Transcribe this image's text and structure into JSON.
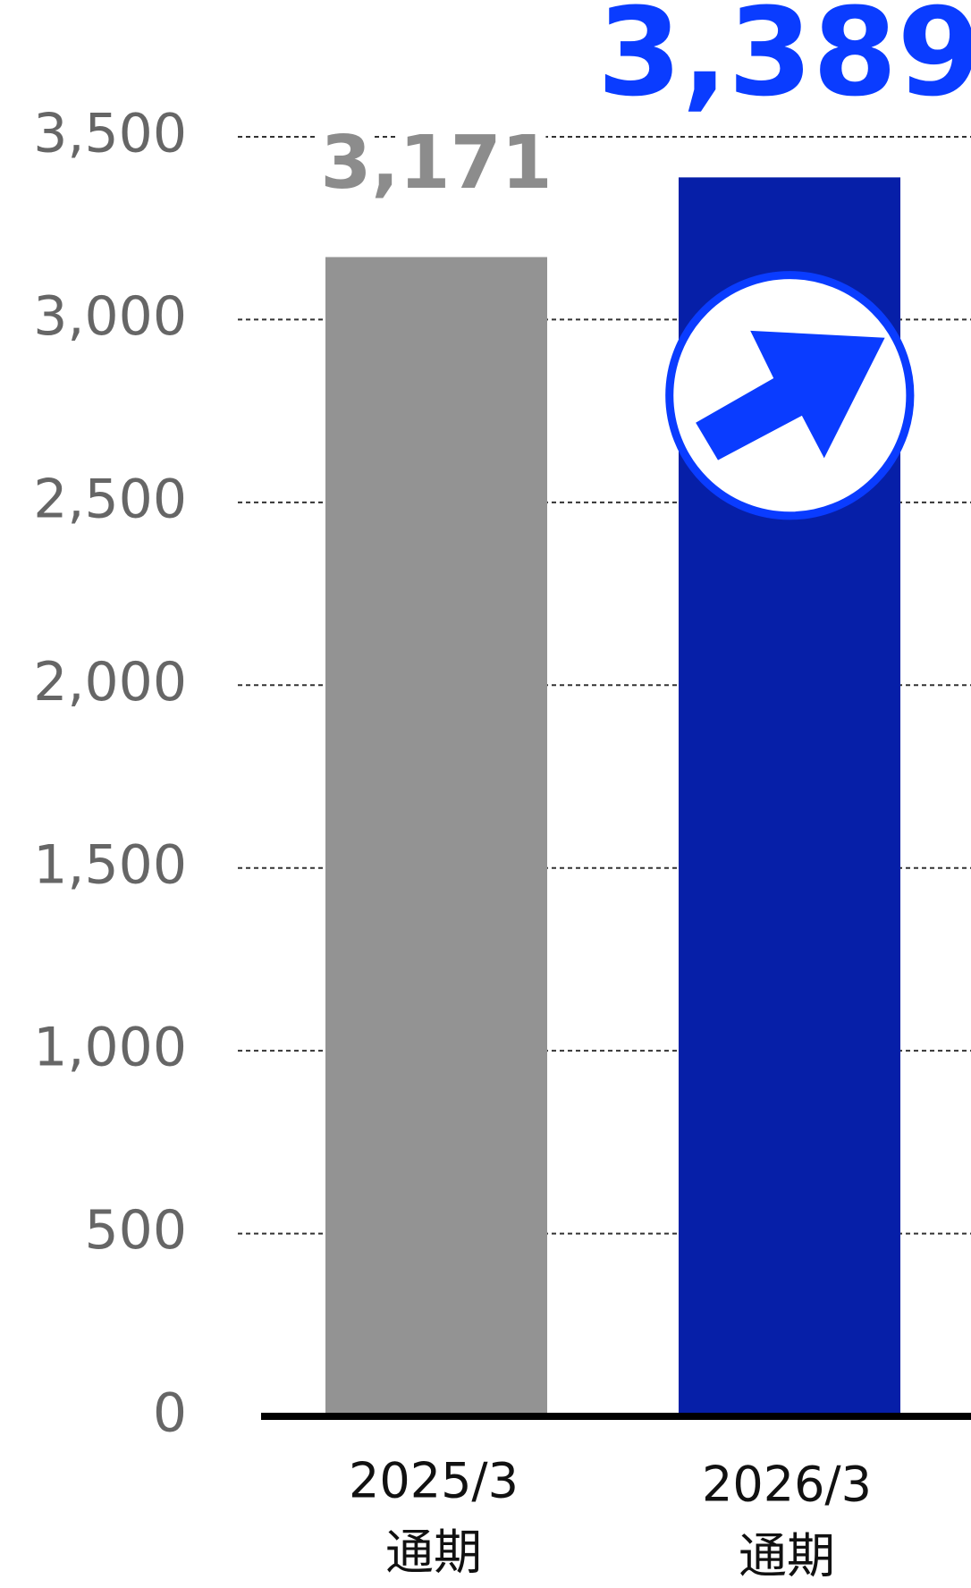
{
  "chart_data": {
    "type": "bar",
    "categories": [
      [
        "2025/3",
        "通期"
      ],
      [
        "2026/3",
        "通期"
      ]
    ],
    "values": [
      3171,
      3389
    ],
    "value_labels": [
      "3,171",
      "3,389"
    ],
    "colors": [
      "#939393",
      "#061fa8"
    ],
    "label_colors": [
      "#8c8c8c",
      "#0a3cff"
    ],
    "ylim": [
      0,
      3500
    ],
    "yticks": [
      0,
      500,
      {
        "value": 1000,
        "label": "1,000"
      },
      {
        "value": 1500,
        "label": "1,500"
      },
      {
        "value": 2000,
        "label": "2,000"
      },
      {
        "value": 2500,
        "label": "2,500"
      },
      {
        "value": 3000,
        "label": "3,000"
      },
      {
        "value": 3500,
        "label": "3,500"
      }
    ],
    "grid": true
  }
}
